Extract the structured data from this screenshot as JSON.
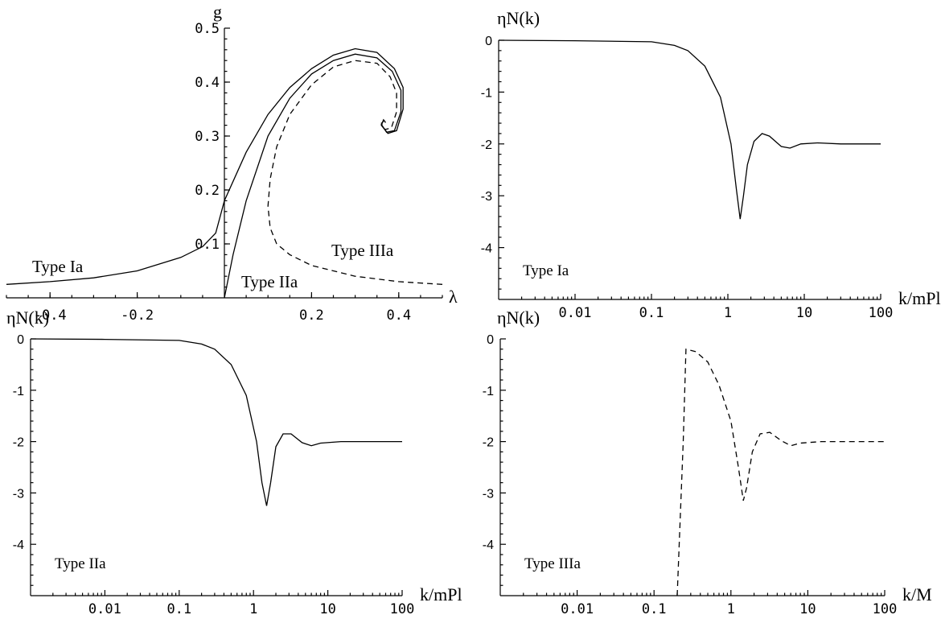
{
  "chart_data": [
    {
      "type": "line",
      "xlabel": "λ",
      "ylabel": "g",
      "xlim": [
        -0.5,
        0.5
      ],
      "ylim": [
        0,
        0.5
      ],
      "xticks": [
        "-0.4",
        "-0.2",
        "0.2",
        "0.4"
      ],
      "yticks": [
        "0.1",
        "0.2",
        "0.3",
        "0.4",
        "0.5"
      ],
      "annotations": [
        "Type Ia",
        "Type IIa",
        "Type IIIa"
      ],
      "series": [
        {
          "style": "solid",
          "points": [
            [
              -0.5,
              0.025
            ],
            [
              -0.4,
              0.03
            ],
            [
              -0.3,
              0.037
            ],
            [
              -0.2,
              0.05
            ],
            [
              -0.1,
              0.075
            ],
            [
              -0.05,
              0.095
            ],
            [
              -0.02,
              0.12
            ],
            [
              0,
              0.18
            ],
            [
              0.05,
              0.27
            ],
            [
              0.1,
              0.34
            ],
            [
              0.15,
              0.39
            ],
            [
              0.2,
              0.425
            ],
            [
              0.25,
              0.45
            ],
            [
              0.3,
              0.462
            ],
            [
              0.35,
              0.455
            ],
            [
              0.39,
              0.425
            ],
            [
              0.41,
              0.39
            ],
            [
              0.41,
              0.35
            ],
            [
              0.395,
              0.31
            ],
            [
              0.375,
              0.305
            ],
            [
              0.36,
              0.32
            ],
            [
              0.365,
              0.33
            ],
            [
              0.37,
              0.325
            ]
          ]
        },
        {
          "style": "solid",
          "points": [
            [
              0,
              0
            ],
            [
              0.02,
              0.08
            ],
            [
              0.05,
              0.18
            ],
            [
              0.1,
              0.3
            ],
            [
              0.15,
              0.37
            ],
            [
              0.2,
              0.415
            ],
            [
              0.25,
              0.44
            ],
            [
              0.3,
              0.452
            ],
            [
              0.35,
              0.445
            ],
            [
              0.385,
              0.42
            ],
            [
              0.405,
              0.385
            ],
            [
              0.405,
              0.345
            ],
            [
              0.39,
              0.31
            ],
            [
              0.372,
              0.307
            ],
            [
              0.36,
              0.322
            ],
            [
              0.367,
              0.33
            ]
          ]
        },
        {
          "style": "dashed",
          "points": [
            [
              0.5,
              0.025
            ],
            [
              0.4,
              0.03
            ],
            [
              0.3,
              0.04
            ],
            [
              0.2,
              0.06
            ],
            [
              0.15,
              0.08
            ],
            [
              0.12,
              0.1
            ],
            [
              0.105,
              0.13
            ],
            [
              0.1,
              0.17
            ],
            [
              0.105,
              0.22
            ],
            [
              0.12,
              0.28
            ],
            [
              0.15,
              0.34
            ],
            [
              0.2,
              0.395
            ],
            [
              0.25,
              0.428
            ],
            [
              0.3,
              0.44
            ],
            [
              0.35,
              0.435
            ],
            [
              0.38,
              0.41
            ],
            [
              0.395,
              0.38
            ],
            [
              0.395,
              0.345
            ],
            [
              0.383,
              0.315
            ],
            [
              0.368,
              0.312
            ],
            [
              0.36,
              0.325
            ]
          ]
        }
      ]
    },
    {
      "type": "line",
      "ylabel": "ηN(k)",
      "xlabel": "k/mPl",
      "xscale": "log",
      "xlim": [
        0.001,
        100
      ],
      "ylim": [
        -5,
        0
      ],
      "xticks": [
        "0.01",
        "0.1",
        "1",
        "10",
        "100"
      ],
      "yticks": [
        "0",
        "-1",
        "-2",
        "-3",
        "-4"
      ],
      "annotations": [
        "Type Ia"
      ],
      "series": [
        {
          "style": "solid",
          "points": [
            [
              0.001,
              0
            ],
            [
              0.01,
              -0.01
            ],
            [
              0.1,
              -0.03
            ],
            [
              0.2,
              -0.1
            ],
            [
              0.3,
              -0.2
            ],
            [
              0.5,
              -0.5
            ],
            [
              0.8,
              -1.1
            ],
            [
              1.1,
              -2.0
            ],
            [
              1.3,
              -2.9
            ],
            [
              1.45,
              -3.45
            ],
            [
              1.6,
              -3.0
            ],
            [
              1.8,
              -2.4
            ],
            [
              2.2,
              -1.95
            ],
            [
              2.8,
              -1.8
            ],
            [
              3.5,
              -1.85
            ],
            [
              5,
              -2.05
            ],
            [
              6.5,
              -2.08
            ],
            [
              9,
              -2.0
            ],
            [
              15,
              -1.98
            ],
            [
              30,
              -2.0
            ],
            [
              100,
              -2.0
            ]
          ]
        }
      ]
    },
    {
      "type": "line",
      "ylabel": "ηN(k)",
      "xlabel": "k/mPl",
      "xscale": "log",
      "xlim": [
        0.001,
        100
      ],
      "ylim": [
        -5,
        0
      ],
      "xticks": [
        "0.01",
        "0.1",
        "1",
        "10",
        "100"
      ],
      "yticks": [
        "0",
        "-1",
        "-2",
        "-3",
        "-4"
      ],
      "annotations": [
        "Type IIa"
      ],
      "series": [
        {
          "style": "solid",
          "points": [
            [
              0.001,
              0
            ],
            [
              0.01,
              -0.01
            ],
            [
              0.1,
              -0.03
            ],
            [
              0.2,
              -0.1
            ],
            [
              0.3,
              -0.2
            ],
            [
              0.5,
              -0.5
            ],
            [
              0.8,
              -1.1
            ],
            [
              1.1,
              -2.0
            ],
            [
              1.3,
              -2.8
            ],
            [
              1.5,
              -3.25
            ],
            [
              1.7,
              -2.8
            ],
            [
              2.0,
              -2.1
            ],
            [
              2.5,
              -1.85
            ],
            [
              3.2,
              -1.85
            ],
            [
              4.5,
              -2.02
            ],
            [
              6,
              -2.08
            ],
            [
              8,
              -2.03
            ],
            [
              15,
              -2.0
            ],
            [
              100,
              -2.0
            ]
          ]
        }
      ]
    },
    {
      "type": "line",
      "ylabel": "ηN(k)",
      "xlabel": "k/M",
      "xscale": "log",
      "xlim": [
        0.001,
        100
      ],
      "ylim": [
        -5,
        0
      ],
      "xticks": [
        "0.01",
        "0.1",
        "1",
        "10",
        "100"
      ],
      "yticks": [
        "0",
        "-1",
        "-2",
        "-3",
        "-4"
      ],
      "annotations": [
        "Type IIIa"
      ],
      "series": [
        {
          "style": "dashed",
          "points": [
            [
              0.2,
              -5
            ],
            [
              0.24,
              -2
            ],
            [
              0.26,
              -0.2
            ],
            [
              0.35,
              -0.25
            ],
            [
              0.5,
              -0.45
            ],
            [
              0.7,
              -0.9
            ],
            [
              1.0,
              -1.6
            ],
            [
              1.25,
              -2.5
            ],
            [
              1.45,
              -3.15
            ],
            [
              1.6,
              -2.9
            ],
            [
              1.9,
              -2.2
            ],
            [
              2.4,
              -1.85
            ],
            [
              3.2,
              -1.82
            ],
            [
              4.5,
              -1.98
            ],
            [
              6,
              -2.08
            ],
            [
              8,
              -2.03
            ],
            [
              15,
              -2.0
            ],
            [
              100,
              -2.0
            ]
          ]
        }
      ]
    }
  ]
}
